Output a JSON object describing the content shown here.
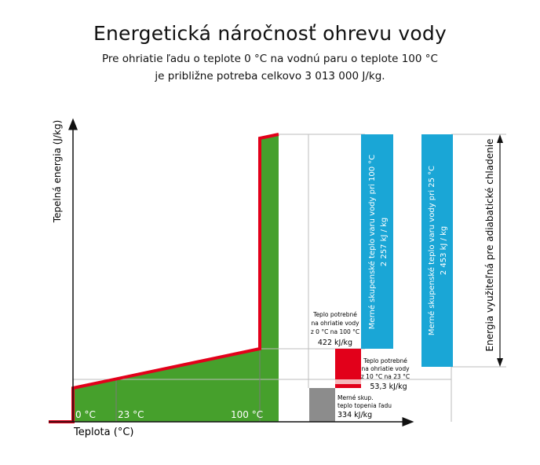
{
  "header": {
    "title": "Energetická náročnosť ohrevu vody",
    "subtitle_line1": "Pre ohriatie ľadu o teplote 0 °C na vodnú paru o teplote 100 °C",
    "subtitle_line2": "je približne potreba celkovo 3 013 000 J/kg."
  },
  "axes": {
    "ylabel": "Tepelná energia (J/kg)",
    "xlabel": "Teplota (°C)",
    "x_ticks": [
      "0 °C",
      "23 °C",
      "100 °C"
    ]
  },
  "colors": {
    "area_green": "#46a02c",
    "curve_red": "#e2001a",
    "bar_blue": "#1aa6d6",
    "bar_red": "#e2001a",
    "bar_pink": "#f5b8bb",
    "bar_gray": "#8c8c8c"
  },
  "bars": {
    "melt": {
      "line1": "Merné skup.",
      "line2": "teplo topenia ľadu",
      "value": "334 kJ/kg"
    },
    "heat_0_100": {
      "line1": "Teplo potrebné",
      "line2": "na ohriatie vody",
      "line3": "z 0 °C na 100 °C",
      "value": "422 kJ/kg"
    },
    "heat_10_23": {
      "line1": "Teplo potrebné",
      "line2": "na ohriatie vody",
      "line3": "z 10 °C na 23 °C",
      "value": "53,3 kJ/kg"
    },
    "vapor_100": {
      "line1": "Merné skupenské teplo varu vody pri 100 °C",
      "value": "2 257 kJ / kg"
    },
    "vapor_25": {
      "line1": "Merné skupenské teplo varu vody pri 25 °C",
      "value": "2 453 kJ / kg"
    }
  },
  "side_label": "Energia využiteľná pre adiabatické chladenie"
}
